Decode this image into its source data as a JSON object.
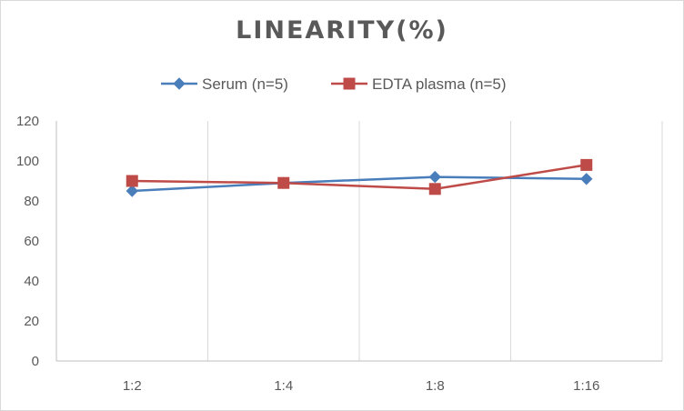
{
  "chart_data": {
    "type": "line",
    "title": "LINEARITY(%)",
    "categories": [
      "1:2",
      "1:4",
      "1:8",
      "1:16"
    ],
    "ylim": [
      0,
      120
    ],
    "yticks": [
      0,
      20,
      40,
      60,
      80,
      100,
      120
    ],
    "grid": "vertical",
    "legend_position": "top",
    "series": [
      {
        "name": "Serum (n=5)",
        "color": "#4a7ebb",
        "marker": "diamond",
        "values": [
          85,
          89,
          92,
          91
        ]
      },
      {
        "name": "EDTA plasma (n=5)",
        "color": "#be4b48",
        "marker": "square",
        "values": [
          90,
          89,
          86,
          98
        ]
      }
    ]
  }
}
